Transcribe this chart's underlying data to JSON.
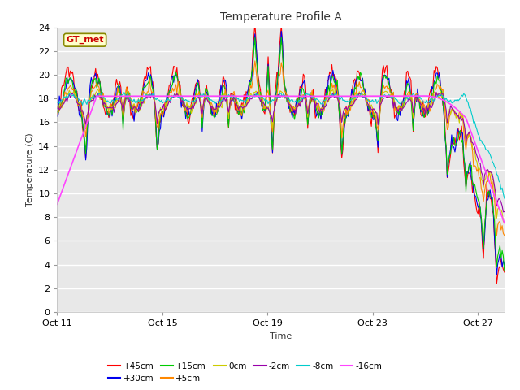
{
  "title": "Temperature Profile A",
  "xlabel": "Time",
  "ylabel": "Temperature (C)",
  "annotation": "GT_met",
  "ylim": [
    0,
    24
  ],
  "yticks": [
    0,
    2,
    4,
    6,
    8,
    10,
    12,
    14,
    16,
    18,
    20,
    22,
    24
  ],
  "xtick_labels": [
    "Oct 11",
    "Oct 15",
    "Oct 19",
    "Oct 23",
    "Oct 27"
  ],
  "xtick_positions": [
    0,
    4,
    8,
    12,
    16
  ],
  "series": {
    "+45cm": {
      "color": "#ff0000",
      "lw": 0.8
    },
    "+30cm": {
      "color": "#0000ee",
      "lw": 0.8
    },
    "+15cm": {
      "color": "#00cc00",
      "lw": 0.8
    },
    "+5cm": {
      "color": "#ff8800",
      "lw": 0.8
    },
    "0cm": {
      "color": "#cccc00",
      "lw": 0.8
    },
    "-2cm": {
      "color": "#9900aa",
      "lw": 0.8
    },
    "-8cm": {
      "color": "#00cccc",
      "lw": 0.8
    },
    "-16cm": {
      "color": "#ff44ff",
      "lw": 1.2
    }
  },
  "legend_order": [
    "+45cm",
    "+30cm",
    "+15cm",
    "+5cm",
    "0cm",
    "-2cm",
    "-8cm",
    "-16cm"
  ],
  "fig_bg_color": "#ffffff",
  "plot_bg_color": "#e8e8e8"
}
